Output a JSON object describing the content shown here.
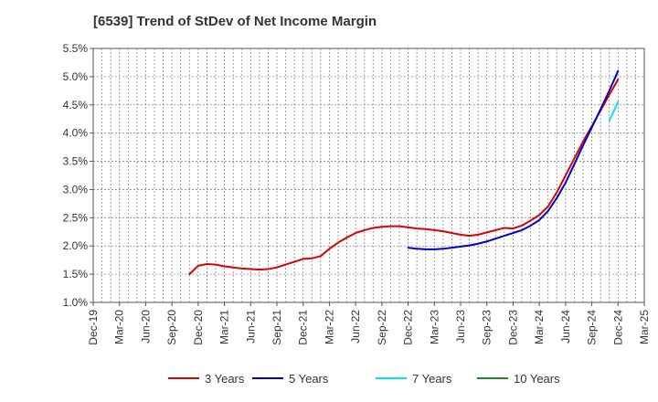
{
  "chart_data": {
    "type": "line",
    "title": "[6539]  Trend of StDev of Net Income Margin",
    "xlabel": "",
    "ylabel": "",
    "x_tick_labels": [
      "Dec-19",
      "Mar-20",
      "Jun-20",
      "Sep-20",
      "Dec-20",
      "Mar-21",
      "Jun-21",
      "Sep-21",
      "Dec-21",
      "Mar-22",
      "Jun-22",
      "Sep-22",
      "Dec-22",
      "Mar-23",
      "Jun-23",
      "Sep-23",
      "Dec-23",
      "Mar-24",
      "Jun-24",
      "Sep-24",
      "Dec-24",
      "Mar-25"
    ],
    "y_tick_labels": [
      "1.0%",
      "1.5%",
      "2.0%",
      "2.5%",
      "3.0%",
      "3.5%",
      "4.0%",
      "4.5%",
      "5.0%",
      "5.5%"
    ],
    "ylim": [
      1.0,
      5.5
    ],
    "y_unit": "%",
    "grid": true,
    "legend_position": "bottom",
    "series": [
      {
        "name": "3 Years",
        "color": "#dd0000",
        "points": [
          [
            "Nov-20",
            1.5
          ],
          [
            "Dec-20",
            1.65
          ],
          [
            "Jan-21",
            1.68
          ],
          [
            "Feb-21",
            1.67
          ],
          [
            "Mar-21",
            1.64
          ],
          [
            "Apr-21",
            1.62
          ],
          [
            "May-21",
            1.6
          ],
          [
            "Jun-21",
            1.59
          ],
          [
            "Jul-21",
            1.58
          ],
          [
            "Aug-21",
            1.59
          ],
          [
            "Sep-21",
            1.62
          ],
          [
            "Oct-21",
            1.67
          ],
          [
            "Nov-21",
            1.72
          ],
          [
            "Dec-21",
            1.77
          ],
          [
            "Jan-22",
            1.78
          ],
          [
            "Feb-22",
            1.82
          ],
          [
            "Mar-22",
            1.95
          ],
          [
            "Apr-22",
            2.06
          ],
          [
            "May-22",
            2.15
          ],
          [
            "Jun-22",
            2.23
          ],
          [
            "Jul-22",
            2.28
          ],
          [
            "Aug-22",
            2.32
          ],
          [
            "Sep-22",
            2.34
          ],
          [
            "Oct-22",
            2.35
          ],
          [
            "Nov-22",
            2.35
          ],
          [
            "Dec-22",
            2.33
          ],
          [
            "Jan-23",
            2.31
          ],
          [
            "Feb-23",
            2.3
          ],
          [
            "Mar-23",
            2.28
          ],
          [
            "Apr-23",
            2.26
          ],
          [
            "May-23",
            2.23
          ],
          [
            "Jun-23",
            2.2
          ],
          [
            "Jul-23",
            2.18
          ],
          [
            "Aug-23",
            2.2
          ],
          [
            "Sep-23",
            2.24
          ],
          [
            "Oct-23",
            2.28
          ],
          [
            "Nov-23",
            2.32
          ],
          [
            "Dec-23",
            2.31
          ],
          [
            "Jan-24",
            2.36
          ],
          [
            "Feb-24",
            2.45
          ],
          [
            "Mar-24",
            2.55
          ],
          [
            "Apr-24",
            2.7
          ],
          [
            "May-24",
            2.95
          ],
          [
            "Jun-24",
            3.25
          ],
          [
            "Jul-24",
            3.55
          ],
          [
            "Aug-24",
            3.85
          ],
          [
            "Sep-24",
            4.12
          ],
          [
            "Oct-24",
            4.4
          ],
          [
            "Nov-24",
            4.68
          ],
          [
            "Dec-24",
            4.95
          ]
        ]
      },
      {
        "name": "5 Years",
        "color": "#0000cc",
        "points": [
          [
            "Dec-22",
            1.97
          ],
          [
            "Jan-23",
            1.95
          ],
          [
            "Feb-23",
            1.94
          ],
          [
            "Mar-23",
            1.94
          ],
          [
            "Apr-23",
            1.95
          ],
          [
            "May-23",
            1.97
          ],
          [
            "Jun-23",
            1.99
          ],
          [
            "Jul-23",
            2.01
          ],
          [
            "Aug-23",
            2.04
          ],
          [
            "Sep-23",
            2.08
          ],
          [
            "Oct-23",
            2.13
          ],
          [
            "Nov-23",
            2.18
          ],
          [
            "Dec-23",
            2.23
          ],
          [
            "Jan-24",
            2.28
          ],
          [
            "Feb-24",
            2.36
          ],
          [
            "Mar-24",
            2.46
          ],
          [
            "Apr-24",
            2.62
          ],
          [
            "May-24",
            2.85
          ],
          [
            "Jun-24",
            3.12
          ],
          [
            "Jul-24",
            3.45
          ],
          [
            "Aug-24",
            3.78
          ],
          [
            "Sep-24",
            4.1
          ],
          [
            "Oct-24",
            4.42
          ],
          [
            "Nov-24",
            4.75
          ],
          [
            "Dec-24",
            5.1
          ]
        ]
      },
      {
        "name": "7 Years",
        "color": "#00e5ee",
        "points": [
          [
            "Nov-24",
            4.22
          ],
          [
            "Dec-24",
            4.55
          ]
        ]
      },
      {
        "name": "10 Years",
        "color": "#228b22",
        "points": []
      }
    ]
  }
}
